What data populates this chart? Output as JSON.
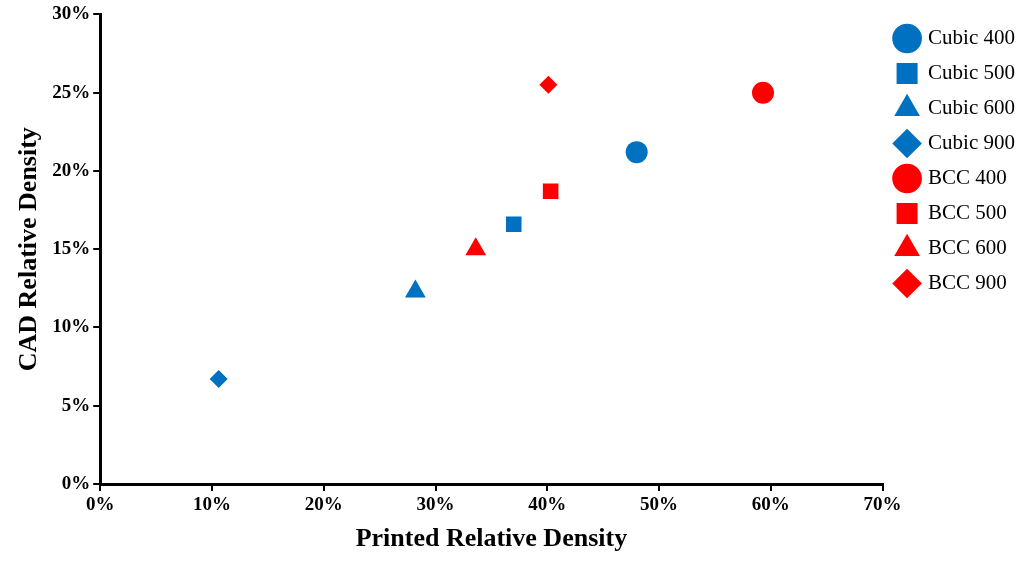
{
  "chart_data": {
    "type": "scatter",
    "xlabel": "Printed Relative Density",
    "ylabel": "CAD Relative Density",
    "xlim": [
      0,
      70
    ],
    "ylim": [
      0,
      30
    ],
    "xticks": [
      {
        "value": 0,
        "label": "0%"
      },
      {
        "value": 10,
        "label": "10%"
      },
      {
        "value": 20,
        "label": "20%"
      },
      {
        "value": 30,
        "label": "30%"
      },
      {
        "value": 40,
        "label": "40%"
      },
      {
        "value": 50,
        "label": "50%"
      },
      {
        "value": 60,
        "label": "60%"
      },
      {
        "value": 70,
        "label": "70%"
      }
    ],
    "yticks": [
      {
        "value": 0,
        "label": "0%"
      },
      {
        "value": 5,
        "label": "5%"
      },
      {
        "value": 10,
        "label": "10%"
      },
      {
        "value": 15,
        "label": "15%"
      },
      {
        "value": 20,
        "label": "20%"
      },
      {
        "value": 25,
        "label": "25%"
      },
      {
        "value": 30,
        "label": "30%"
      }
    ],
    "grid": false,
    "legend": "right",
    "series": [
      {
        "name": "Cubic 400",
        "color": "#0070c0",
        "marker": "circle",
        "x": [
          48.0
        ],
        "values": [
          21.2
        ]
      },
      {
        "name": "Cubic 500",
        "color": "#0070c0",
        "marker": "square",
        "x": [
          37.0
        ],
        "values": [
          16.6
        ]
      },
      {
        "name": "Cubic 600",
        "color": "#0070c0",
        "marker": "triangle",
        "x": [
          28.2
        ],
        "values": [
          12.3
        ]
      },
      {
        "name": "Cubic 900",
        "color": "#0070c0",
        "marker": "diamond",
        "x": [
          10.6
        ],
        "values": [
          6.7
        ]
      },
      {
        "name": "BCC 400",
        "color": "#ff0000",
        "marker": "circle",
        "x": [
          59.3
        ],
        "values": [
          25.0
        ]
      },
      {
        "name": "BCC 500",
        "color": "#ff0000",
        "marker": "square",
        "x": [
          40.3
        ],
        "values": [
          18.7
        ]
      },
      {
        "name": "BCC 600",
        "color": "#ff0000",
        "marker": "triangle",
        "x": [
          33.6
        ],
        "values": [
          15.0
        ]
      },
      {
        "name": "BCC 900",
        "color": "#ff0000",
        "marker": "diamond",
        "x": [
          40.1
        ],
        "values": [
          25.5
        ]
      }
    ]
  }
}
